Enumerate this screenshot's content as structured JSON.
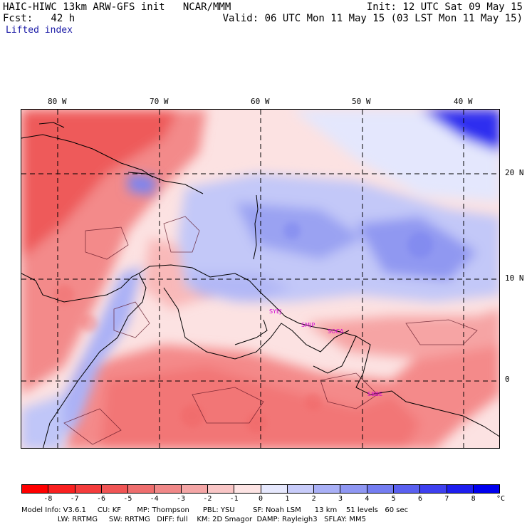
{
  "header": {
    "model_title": "HAIC-HIWC 13km ARW-GFS init   NCAR/MMM",
    "forecast": "Fcst:   42 h",
    "field_name": "Lifted index",
    "init": "Init: 12 UTC Sat 09 May 15",
    "valid": "Valid: 06 UTC Mon 11 May 15 (03 LST Mon 11 May 15)"
  },
  "map": {
    "lon_labels": [
      "80 W",
      "70 W",
      "60 W",
      "50 W",
      "40 W"
    ],
    "lat_labels": [
      "20 N",
      "10 N",
      "0"
    ],
    "stations": [
      "SYEJ",
      "SMJP",
      "SOCA",
      "SBBE"
    ],
    "colors": {
      "strong_warm": "#ee4a4a",
      "warm": "#f59191",
      "light_warm": "#fcd6d6",
      "neutral": "#ffffff",
      "light_cool": "#d6d9fb",
      "cool": "#9aa3f2",
      "strong_cool": "#3c3cf0",
      "station": "#d000d0"
    }
  },
  "colorbar": {
    "labels": [
      "-8",
      "-7",
      "-6",
      "-5",
      "-4",
      "-3",
      "-2",
      "-1",
      "0",
      "1",
      "2",
      "3",
      "4",
      "5",
      "6",
      "7",
      "8"
    ],
    "unit": "°C",
    "colors": [
      "#ff0000",
      "#f92020",
      "#f43c3c",
      "#f05555",
      "#ee6e6e",
      "#f08888",
      "#f4a6a6",
      "#f9c6c6",
      "#fde4e4",
      "#e6e8fd",
      "#c8ccfa",
      "#a9b0f6",
      "#8f97f3",
      "#747df1",
      "#5a60f0",
      "#3e40ef",
      "#1e1eee",
      "#0000ee"
    ]
  },
  "footer": {
    "line1": "Model Info: V3.6.1     CU: KF       MP: Thompson      PBL: YSU        SF: Noah LSM      13 km    51 levels   60 sec",
    "line2": "                LW: RRTMG     SW: RRTMG   DIFF: full    KM: 2D Smagor  DAMP: Rayleigh3   SFLAY: MM5"
  }
}
